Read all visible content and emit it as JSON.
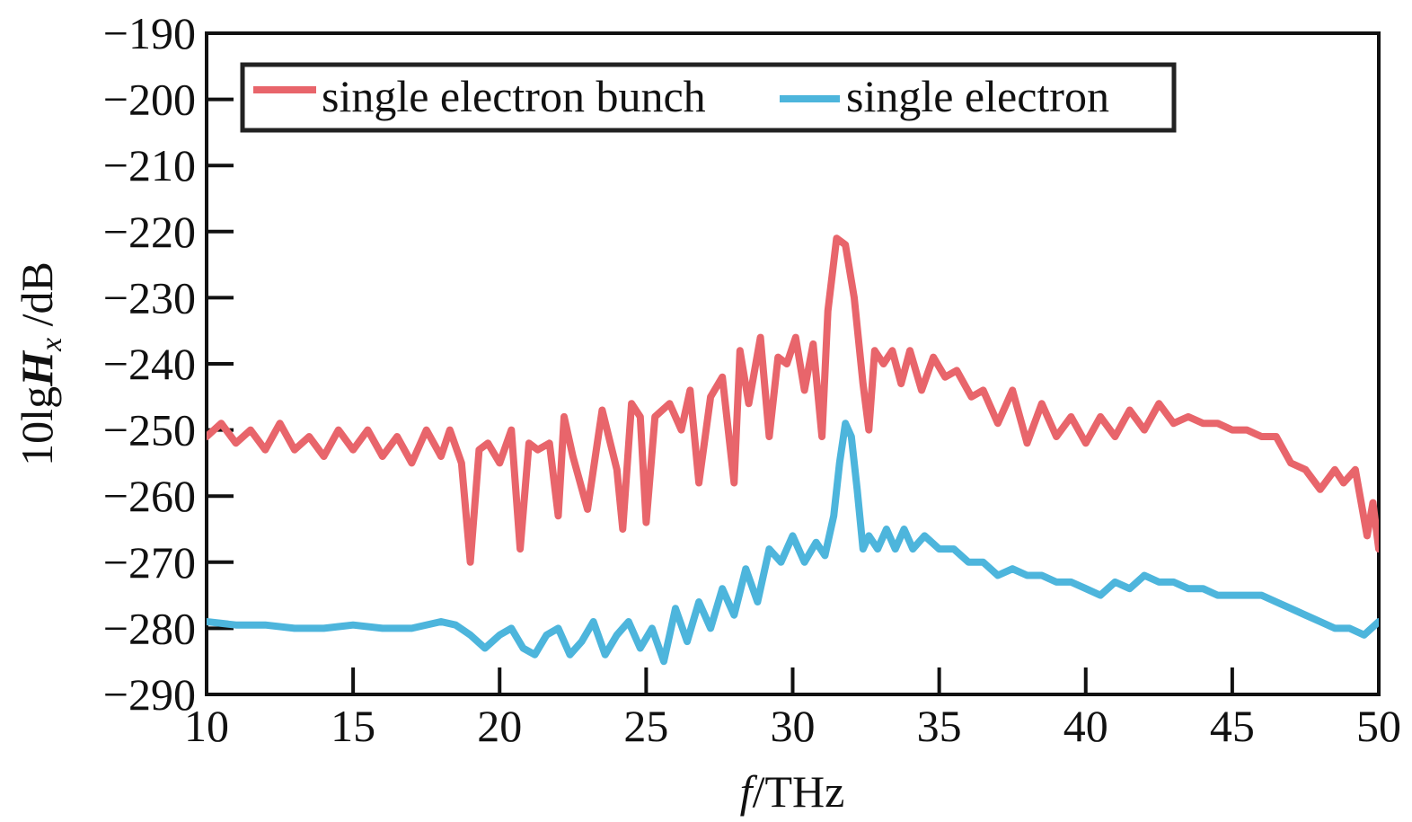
{
  "chart_data": {
    "type": "line",
    "title": "",
    "xlabel": {
      "italic": "f",
      "rest": "/THz"
    },
    "ylabel": {
      "prefix": "10lg",
      "bold_italic": "H",
      "subscript": "x",
      "suffix": " /dB"
    },
    "xlim": [
      10,
      50
    ],
    "ylim": [
      -290,
      -190
    ],
    "xticks": [
      10,
      15,
      20,
      25,
      30,
      35,
      40,
      45,
      50
    ],
    "yticks": [
      -190,
      -200,
      -210,
      -220,
      -230,
      -240,
      -250,
      -260,
      -270,
      -280,
      -290
    ],
    "xtick_labels": [
      "10",
      "15",
      "20",
      "25",
      "30",
      "35",
      "40",
      "45",
      "50"
    ],
    "ytick_labels": [
      "−190",
      "−200",
      "−210",
      "−220",
      "−230",
      "−240",
      "−250",
      "−260",
      "−270",
      "−280",
      "−290"
    ],
    "grid": false,
    "legend_position": "top-left",
    "series": [
      {
        "name": "single electron bunch",
        "color": "#e8656b",
        "x": [
          10,
          10.5,
          11,
          11.5,
          12,
          12.5,
          13,
          13.5,
          14,
          14.5,
          15,
          15.5,
          16,
          16.5,
          17,
          17.5,
          18,
          18.3,
          18.7,
          19,
          19.3,
          19.6,
          20,
          20.4,
          20.7,
          21,
          21.3,
          21.7,
          22,
          22.2,
          22.5,
          23,
          23.5,
          24,
          24.2,
          24.5,
          24.8,
          25,
          25.3,
          25.8,
          26.2,
          26.5,
          26.8,
          27.2,
          27.6,
          28,
          28.2,
          28.5,
          28.9,
          29.2,
          29.5,
          29.8,
          30.1,
          30.4,
          30.7,
          31,
          31.2,
          31.5,
          31.8,
          32.1,
          32.4,
          32.6,
          32.8,
          33.1,
          33.4,
          33.7,
          34,
          34.4,
          34.8,
          35.2,
          35.6,
          36.1,
          36.5,
          37,
          37.5,
          38,
          38.5,
          39,
          39.5,
          40,
          40.5,
          41,
          41.5,
          42,
          42.5,
          43,
          43.5,
          44,
          44.5,
          45,
          45.5,
          46,
          46.5,
          47,
          47.5,
          48,
          48.5,
          48.8,
          49.2,
          49.6,
          49.8,
          50
        ],
        "y": [
          -251,
          -249,
          -252,
          -250,
          -253,
          -249,
          -253,
          -251,
          -254,
          -250,
          -253,
          -250,
          -254,
          -251,
          -255,
          -250,
          -254,
          -250,
          -255,
          -270,
          -253,
          -252,
          -255,
          -250,
          -268,
          -252,
          -253,
          -252,
          -263,
          -248,
          -254,
          -262,
          -247,
          -256,
          -265,
          -246,
          -248,
          -264,
          -248,
          -246,
          -250,
          -244,
          -258,
          -245,
          -242,
          -258,
          -238,
          -246,
          -236,
          -251,
          -239,
          -240,
          -236,
          -244,
          -237,
          -251,
          -232,
          -221,
          -222,
          -230,
          -243,
          -250,
          -238,
          -240,
          -238,
          -243,
          -238,
          -244,
          -239,
          -242,
          -241,
          -245,
          -244,
          -249,
          -244,
          -252,
          -246,
          -251,
          -248,
          -252,
          -248,
          -251,
          -247,
          -250,
          -246,
          -249,
          -248,
          -249,
          -249,
          -250,
          -250,
          -251,
          -251,
          -255,
          -256,
          -259,
          -256,
          -258,
          -256,
          -266,
          -261,
          -268
        ]
      },
      {
        "name": "single electron",
        "color": "#4db5dc",
        "x": [
          10,
          11,
          12,
          13,
          14,
          15,
          16,
          17,
          18,
          18.5,
          19,
          19.5,
          20,
          20.4,
          20.8,
          21.2,
          21.6,
          22,
          22.4,
          22.8,
          23.2,
          23.6,
          24,
          24.4,
          24.8,
          25.2,
          25.6,
          26,
          26.4,
          26.8,
          27.2,
          27.6,
          28,
          28.4,
          28.8,
          29.2,
          29.6,
          30,
          30.4,
          30.8,
          31.1,
          31.4,
          31.6,
          31.8,
          32,
          32.2,
          32.4,
          32.6,
          32.9,
          33.2,
          33.5,
          33.8,
          34.1,
          34.5,
          35,
          35.5,
          36,
          36.5,
          37,
          37.5,
          38,
          38.5,
          39,
          39.5,
          40,
          40.5,
          41,
          41.5,
          42,
          42.5,
          43,
          43.5,
          44,
          44.5,
          45,
          45.5,
          46,
          46.5,
          47,
          47.5,
          48,
          48.5,
          49,
          49.5,
          50
        ],
        "y": [
          -279,
          -279.5,
          -279.5,
          -280,
          -280,
          -279.5,
          -280,
          -280,
          -279,
          -279.5,
          -281,
          -283,
          -281,
          -280,
          -283,
          -284,
          -281,
          -280,
          -284,
          -282,
          -279,
          -284,
          -281,
          -279,
          -283,
          -280,
          -285,
          -277,
          -282,
          -276,
          -280,
          -274,
          -278,
          -271,
          -276,
          -268,
          -270,
          -266,
          -270,
          -267,
          -269,
          -263,
          -255,
          -249,
          -251,
          -259,
          -268,
          -266,
          -268,
          -265,
          -268,
          -265,
          -268,
          -266,
          -268,
          -268,
          -270,
          -270,
          -272,
          -271,
          -272,
          -272,
          -273,
          -273,
          -274,
          -275,
          -273,
          -274,
          -272,
          -273,
          -273,
          -274,
          -274,
          -275,
          -275,
          -275,
          -275,
          -276,
          -277,
          -278,
          -279,
          -280,
          -280,
          -281,
          -279
        ]
      }
    ]
  }
}
